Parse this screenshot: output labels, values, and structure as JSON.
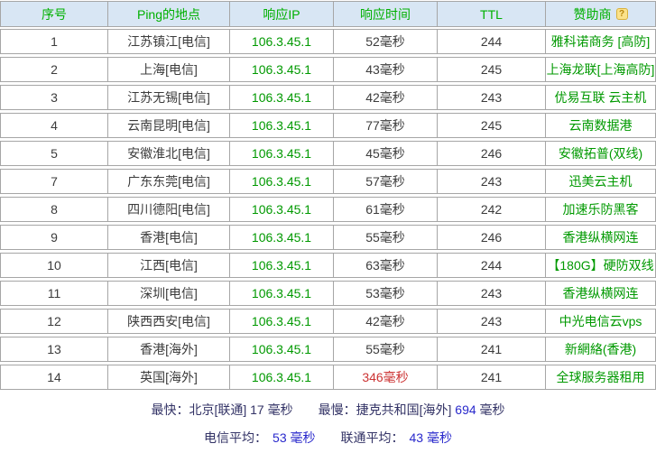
{
  "colors": {
    "header_bg": "#d8e6f4",
    "header_text": "#00b000",
    "green_text": "#009900",
    "body_text": "#3c3c3c",
    "slow_text": "#cc3333",
    "border": "#a6a6a6",
    "summary_text": "#333366",
    "summary_value": "#2929cc"
  },
  "table": {
    "columns": [
      "序号",
      "Ping的地点",
      "响应IP",
      "响应时间",
      "TTL",
      "赞助商"
    ],
    "help_icon_glyph": "?",
    "rows": [
      {
        "index": "1",
        "location": "江苏镇江[电信]",
        "ip": "106.3.45.1",
        "time": "52毫秒",
        "ttl": "244",
        "sponsor": "雅科诺商务 [高防]"
      },
      {
        "index": "2",
        "location": "上海[电信]",
        "ip": "106.3.45.1",
        "time": "43毫秒",
        "ttl": "245",
        "sponsor": "上海龙联[上海高防]"
      },
      {
        "index": "3",
        "location": "江苏无锡[电信]",
        "ip": "106.3.45.1",
        "time": "42毫秒",
        "ttl": "243",
        "sponsor": "优易互联 云主机"
      },
      {
        "index": "4",
        "location": "云南昆明[电信]",
        "ip": "106.3.45.1",
        "time": "77毫秒",
        "ttl": "245",
        "sponsor": "云南数据港"
      },
      {
        "index": "5",
        "location": "安徽淮北[电信]",
        "ip": "106.3.45.1",
        "time": "45毫秒",
        "ttl": "246",
        "sponsor": "安徽拓普(双线)"
      },
      {
        "index": "7",
        "location": "广东东莞[电信]",
        "ip": "106.3.45.1",
        "time": "57毫秒",
        "ttl": "243",
        "sponsor": "迅美云主机"
      },
      {
        "index": "8",
        "location": "四川德阳[电信]",
        "ip": "106.3.45.1",
        "time": "61毫秒",
        "ttl": "242",
        "sponsor": "加速乐防黑客"
      },
      {
        "index": "9",
        "location": "香港[电信]",
        "ip": "106.3.45.1",
        "time": "55毫秒",
        "ttl": "246",
        "sponsor": "香港纵横网连"
      },
      {
        "index": "10",
        "location": "江西[电信]",
        "ip": "106.3.45.1",
        "time": "63毫秒",
        "ttl": "244",
        "sponsor": "【180G】硬防双线"
      },
      {
        "index": "11",
        "location": "深圳[电信]",
        "ip": "106.3.45.1",
        "time": "53毫秒",
        "ttl": "243",
        "sponsor": "香港纵横网连"
      },
      {
        "index": "12",
        "location": "陕西西安[电信]",
        "ip": "106.3.45.1",
        "time": "42毫秒",
        "ttl": "243",
        "sponsor": "中光电信云vps"
      },
      {
        "index": "13",
        "location": "香港[海外]",
        "ip": "106.3.45.1",
        "time": "55毫秒",
        "ttl": "241",
        "sponsor": "新網絡(香港)"
      },
      {
        "index": "14",
        "location": "英国[海外]",
        "ip": "106.3.45.1",
        "time": "346毫秒",
        "ttl": "241",
        "sponsor": "全球服务器租用",
        "slow": true
      }
    ]
  },
  "summary": {
    "fastest_text": "最快：北京[联通] 17 毫秒",
    "slowest_prefix": "最慢：捷克共和国[海外] ",
    "slowest_value": "694",
    "slowest_suffix": " 毫秒",
    "telecom_label": "电信平均：",
    "telecom_value": "53 毫秒",
    "unicom_label": "联通平均：",
    "unicom_value": "43 毫秒"
  }
}
